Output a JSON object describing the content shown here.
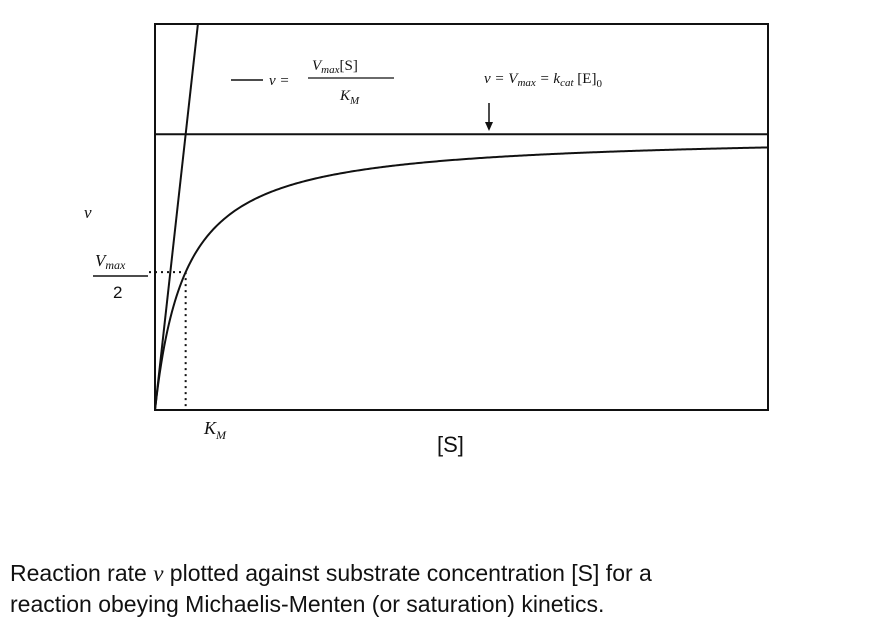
{
  "chart_data": {
    "type": "line",
    "title": "",
    "xlabel": "[S]",
    "ylabel": "v",
    "xlim": [
      0,
      20
    ],
    "ylim": [
      0,
      1.4
    ],
    "grid": false,
    "legend": "none",
    "params": {
      "Vmax": 1,
      "KM": 1
    },
    "series": [
      {
        "name": "",
        "kind": "curve",
        "x": [
          0,
          0.25,
          0.5,
          0.75,
          1,
          1.5,
          2,
          3,
          4,
          5,
          6,
          8,
          10,
          12,
          14,
          16,
          18,
          20
        ],
        "y": [
          0,
          0.2,
          0.333,
          0.429,
          0.5,
          0.6,
          0.667,
          0.75,
          0.8,
          0.833,
          0.857,
          0.889,
          0.909,
          0.923,
          0.933,
          0.941,
          0.947,
          0.952
        ]
      },
      {
        "name": "",
        "kind": "initial-slope",
        "x": [
          0,
          2.5
        ],
        "y": [
          0,
          2.5
        ]
      },
      {
        "name": "",
        "kind": "asymptote",
        "x": [
          0,
          20
        ],
        "y": [
          1,
          1
        ]
      }
    ],
    "annotations": {
      "half_vmax_label": {
        "numerator": "V",
        "sub": "max",
        "denominator": "2"
      },
      "km_label": {
        "main": "K",
        "sub": "M"
      },
      "slope_label": {
        "lhs": "v =",
        "num_v": "V",
        "num_sub": "max",
        "num_s": "[S]",
        "den": "K",
        "den_sub": "M"
      },
      "vmax_label": {
        "lhs": "v = ",
        "v": "V",
        "v_sub": "max",
        "eq": " = ",
        "k": "k",
        "k_sub": "cat",
        "e": " [E]",
        "e_sub": "0"
      }
    }
  },
  "caption": {
    "line1_a": "Reaction rate ",
    "line1_var": "v",
    "line1_b": "  plotted against substrate concentration [S] for a",
    "line2": "reaction obeying Michaelis-Menten (or saturation) kinetics."
  }
}
